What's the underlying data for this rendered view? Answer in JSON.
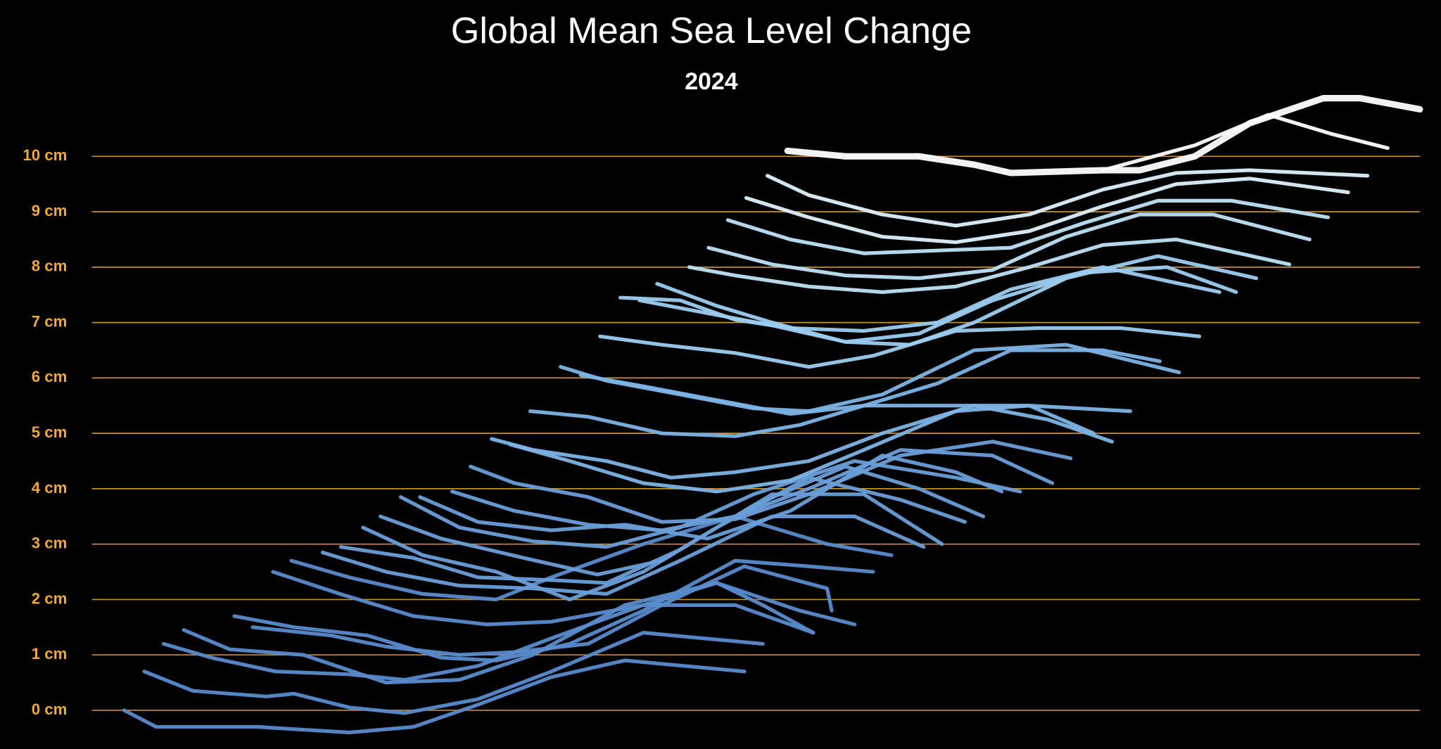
{
  "chart_data": {
    "type": "line",
    "title": "Global Mean Sea Level Change",
    "subtitle": "2024",
    "xlim": [
      0,
      1450
    ],
    "ylim": [
      -0.5,
      11.1
    ],
    "yticks": [
      {
        "value": 0,
        "label": "0 cm"
      },
      {
        "value": 1,
        "label": "1 cm"
      },
      {
        "value": 2,
        "label": "2 cm"
      },
      {
        "value": 3,
        "label": "3 cm"
      },
      {
        "value": 4,
        "label": "4 cm"
      },
      {
        "value": 5,
        "label": "5 cm"
      },
      {
        "value": 6,
        "label": "6 cm"
      },
      {
        "value": 7,
        "label": "7 cm"
      },
      {
        "value": 8,
        "label": "8 cm"
      },
      {
        "value": 9,
        "label": "9 cm"
      },
      {
        "value": 10,
        "label": "10 cm"
      }
    ],
    "grid": true,
    "grid_color": "#c8902a",
    "tick_color": "#f0a83c",
    "series": [
      {
        "color": "#5a8bcc",
        "x": [
          35,
          70,
          180,
          280,
          350,
          420,
          500,
          580,
          710
        ],
        "values": [
          0,
          -0.3,
          -0.3,
          -0.4,
          -0.3,
          0.1,
          0.6,
          0.9,
          0.7
        ]
      },
      {
        "color": "#5a8bcc",
        "x": [
          57,
          110,
          190,
          220,
          280,
          340,
          420,
          500,
          600,
          730
        ],
        "values": [
          0.7,
          0.35,
          0.25,
          0.3,
          0.05,
          -0.05,
          0.2,
          0.7,
          1.4,
          1.2
        ]
      },
      {
        "color": "#5a8bcc",
        "x": [
          78,
          130,
          200,
          280,
          340,
          420,
          500,
          600,
          700,
          785
        ],
        "values": [
          1.2,
          0.95,
          0.7,
          0.65,
          0.55,
          0.8,
          1.3,
          1.9,
          1.9,
          1.4
        ]
      },
      {
        "color": "#5a8bcc",
        "x": [
          100,
          150,
          230,
          320,
          400,
          480,
          580,
          680,
          770,
          830
        ],
        "values": [
          1.45,
          1.1,
          1.0,
          0.5,
          0.55,
          1.0,
          1.9,
          2.3,
          1.8,
          1.55
        ]
      },
      {
        "color": "#5a8bcc",
        "x": [
          155,
          220,
          300,
          380,
          440,
          520,
          600,
          700,
          780,
          850
        ],
        "values": [
          1.7,
          1.5,
          1.35,
          0.95,
          0.9,
          1.2,
          1.8,
          2.7,
          2.6,
          2.5
        ]
      },
      {
        "color": "#5a8bcc",
        "x": [
          175,
          260,
          320,
          400,
          460,
          540,
          620,
          710,
          800,
          805
        ],
        "values": [
          1.5,
          1.35,
          1.15,
          1.0,
          1.05,
          1.2,
          1.9,
          2.6,
          2.2,
          1.8
        ]
      },
      {
        "color": "#5a8bcc",
        "x": [
          197,
          270,
          350,
          430,
          500,
          600,
          680,
          730,
          785
        ],
        "values": [
          2.5,
          2.1,
          1.7,
          1.55,
          1.6,
          1.9,
          2.3,
          1.9,
          1.4
        ]
      },
      {
        "color": "#5a8bcc",
        "x": [
          217,
          280,
          360,
          440,
          500,
          600,
          700,
          800,
          870
        ],
        "values": [
          2.7,
          2.4,
          2.1,
          2.0,
          2.4,
          3.0,
          3.5,
          3.0,
          2.8
        ]
      },
      {
        "color": "#6a9ed8",
        "x": [
          251,
          320,
          400,
          480,
          560,
          640,
          740,
          830,
          905
        ],
        "values": [
          2.85,
          2.5,
          2.25,
          2.2,
          2.1,
          2.7,
          3.5,
          3.5,
          2.95
        ]
      },
      {
        "color": "#6a9ed8",
        "x": [
          271,
          350,
          420,
          500,
          560,
          640,
          740,
          840,
          925
        ],
        "values": [
          2.95,
          2.75,
          2.4,
          2.35,
          2.3,
          2.9,
          3.9,
          3.9,
          3.0
        ]
      },
      {
        "color": "#6a9ed8",
        "x": [
          295,
          360,
          440,
          520,
          600,
          680,
          780,
          880,
          950
        ],
        "values": [
          3.3,
          2.8,
          2.5,
          2.0,
          2.5,
          3.3,
          4.2,
          3.8,
          3.4
        ]
      },
      {
        "color": "#6a9ed8",
        "x": [
          314,
          380,
          470,
          550,
          620,
          720,
          820,
          900,
          970
        ],
        "values": [
          3.5,
          3.1,
          2.75,
          2.45,
          2.7,
          3.7,
          4.4,
          4.0,
          3.5
        ]
      },
      {
        "color": "#6a9ed8",
        "x": [
          336,
          400,
          480,
          560,
          640,
          720,
          830,
          940,
          1010
        ],
        "values": [
          3.85,
          3.3,
          3.05,
          2.95,
          3.3,
          3.9,
          4.5,
          4.2,
          3.95
        ]
      },
      {
        "color": "#6a9ed8",
        "x": [
          357,
          420,
          500,
          580,
          670,
          760,
          860,
          940,
          990
        ],
        "values": [
          3.85,
          3.4,
          3.25,
          3.35,
          3.1,
          3.6,
          4.6,
          4.3,
          3.95
        ]
      },
      {
        "color": "#6a9ed8",
        "x": [
          392,
          460,
          540,
          620,
          700,
          780,
          880,
          980,
          1045
        ],
        "values": [
          3.95,
          3.6,
          3.35,
          3.25,
          3.5,
          4.0,
          4.7,
          4.6,
          4.1
        ]
      },
      {
        "color": "#6a9ed8",
        "x": [
          412,
          460,
          540,
          620,
          700,
          780,
          880,
          980,
          1065
        ],
        "values": [
          4.4,
          4.1,
          3.85,
          3.4,
          3.45,
          3.9,
          4.6,
          4.85,
          4.55
        ]
      },
      {
        "color": "#7db4e6",
        "x": [
          435,
          480,
          560,
          630,
          700,
          780,
          860,
          960,
          1040,
          1110
        ],
        "values": [
          4.9,
          4.7,
          4.5,
          4.2,
          4.3,
          4.5,
          5.0,
          5.5,
          5.25,
          4.85
        ]
      },
      {
        "color": "#7db4e6",
        "x": [
          455,
          520,
          600,
          680,
          760,
          840,
          940,
          1020,
          1090
        ],
        "values": [
          4.8,
          4.5,
          4.1,
          3.95,
          4.15,
          4.7,
          5.4,
          5.5,
          5.0
        ]
      },
      {
        "color": "#7db4e6",
        "x": [
          477,
          540,
          620,
          700,
          770,
          840,
          930,
          1020,
          1130
        ],
        "values": [
          5.4,
          5.3,
          5.0,
          4.95,
          5.15,
          5.5,
          5.5,
          5.5,
          5.4
        ]
      },
      {
        "color": "#7db4e6",
        "x": [
          510,
          560,
          640,
          720,
          780,
          860,
          960,
          1060,
          1183
        ],
        "values": [
          6.2,
          5.95,
          5.7,
          5.45,
          5.4,
          5.7,
          6.5,
          6.6,
          6.1
        ]
      },
      {
        "color": "#7db4e6",
        "x": [
          532,
          600,
          680,
          760,
          840,
          920,
          1000,
          1100,
          1162
        ],
        "values": [
          6.05,
          5.85,
          5.6,
          5.35,
          5.5,
          5.9,
          6.5,
          6.5,
          6.3
        ]
      },
      {
        "color": "#9ccdf0",
        "x": [
          553,
          620,
          700,
          780,
          850,
          940,
          1030,
          1120,
          1205
        ],
        "values": [
          6.75,
          6.6,
          6.45,
          6.2,
          6.4,
          6.85,
          6.9,
          6.9,
          6.75
        ]
      },
      {
        "color": "#9ccdf0",
        "x": [
          575,
          640,
          700,
          760,
          840,
          920,
          1000,
          1100,
          1170,
          1227
        ],
        "values": [
          7.45,
          7.4,
          7.05,
          6.9,
          6.85,
          7.0,
          7.6,
          8.0,
          7.75,
          7.55
        ]
      },
      {
        "color": "#9ccdf0",
        "x": [
          596,
          660,
          740,
          820,
          900,
          980,
          1080,
          1170,
          1245
        ],
        "values": [
          7.4,
          7.2,
          6.95,
          6.65,
          6.8,
          7.4,
          7.9,
          8.0,
          7.55
        ]
      },
      {
        "color": "#9ccdf0",
        "x": [
          615,
          680,
          740,
          820,
          890,
          960,
          1060,
          1160,
          1267
        ],
        "values": [
          7.7,
          7.3,
          7.0,
          6.65,
          6.6,
          7.0,
          7.8,
          8.2,
          7.8
        ]
      },
      {
        "color": "#bfe3f7",
        "x": [
          650,
          700,
          780,
          860,
          940,
          1020,
          1100,
          1180,
          1303
        ],
        "values": [
          8.0,
          7.85,
          7.65,
          7.55,
          7.65,
          8.0,
          8.4,
          8.5,
          8.05
        ]
      },
      {
        "color": "#bfe3f7",
        "x": [
          671,
          740,
          820,
          900,
          980,
          1060,
          1140,
          1220,
          1325
        ],
        "values": [
          8.35,
          8.05,
          7.85,
          7.8,
          7.95,
          8.55,
          8.95,
          8.95,
          8.5
        ]
      },
      {
        "color": "#bfe3f7",
        "x": [
          692,
          760,
          840,
          920,
          1000,
          1080,
          1160,
          1240,
          1345
        ],
        "values": [
          8.85,
          8.5,
          8.25,
          8.3,
          8.35,
          8.8,
          9.2,
          9.2,
          8.9
        ]
      },
      {
        "color": "#def1fb",
        "x": [
          712,
          780,
          860,
          940,
          1020,
          1100,
          1180,
          1260,
          1367
        ],
        "values": [
          9.25,
          8.9,
          8.55,
          8.45,
          8.65,
          9.1,
          9.5,
          9.6,
          9.35
        ]
      },
      {
        "color": "#def1fb",
        "x": [
          735,
          780,
          860,
          940,
          1020,
          1100,
          1180,
          1260,
          1388
        ],
        "values": [
          9.65,
          9.3,
          8.95,
          8.75,
          8.95,
          9.4,
          9.7,
          9.75,
          9.65
        ]
      },
      {
        "color": "#ffffff",
        "x": [
          1100,
          1200,
          1280,
          1350,
          1410
        ],
        "values": [
          9.75,
          10.2,
          10.75,
          10.4,
          10.15
        ]
      },
      {
        "color": "#ffffff",
        "x": [
          757,
          820,
          900,
          960,
          1000,
          1100,
          1140,
          1200,
          1260,
          1340,
          1380,
          1445
        ],
        "values": [
          10.1,
          10.0,
          10.0,
          9.85,
          9.7,
          9.75,
          9.75,
          10.0,
          10.6,
          11.05,
          11.05,
          10.85
        ]
      }
    ]
  }
}
